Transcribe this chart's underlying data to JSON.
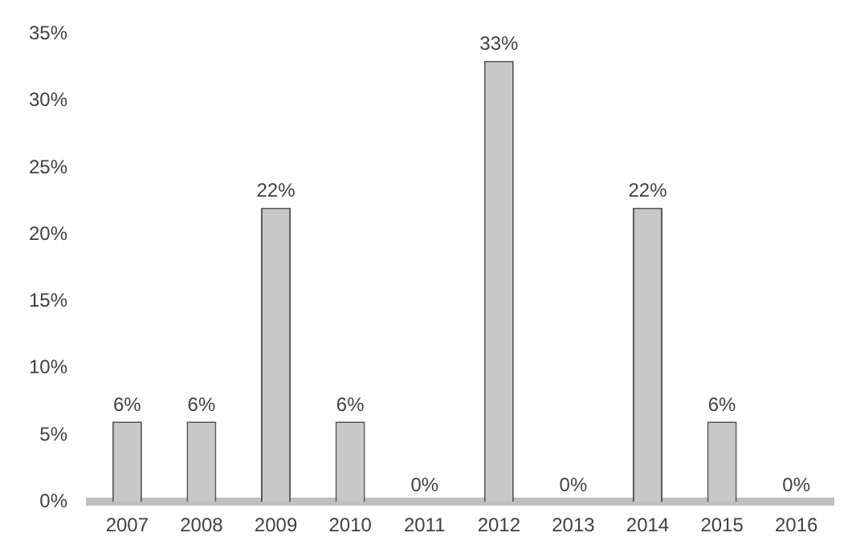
{
  "chart_data": {
    "type": "bar",
    "categories": [
      "2007",
      "2008",
      "2009",
      "2010",
      "2011",
      "2012",
      "2013",
      "2014",
      "2015",
      "2016"
    ],
    "values": [
      6,
      6,
      22,
      6,
      0,
      33,
      0,
      22,
      6,
      0
    ],
    "value_labels": [
      "6%",
      "6%",
      "22%",
      "6%",
      "0%",
      "33%",
      "0%",
      "22%",
      "6%",
      "0%"
    ],
    "color": "#c8c8c8",
    "ylim": [
      0,
      35
    ],
    "yticks": [
      {
        "value": 0,
        "label": "0%"
      },
      {
        "value": 5,
        "label": "5%"
      },
      {
        "value": 10,
        "label": "10%"
      },
      {
        "value": 15,
        "label": "15%"
      },
      {
        "value": 20,
        "label": "20%"
      },
      {
        "value": 25,
        "label": "25%"
      },
      {
        "value": 30,
        "label": "30%"
      },
      {
        "value": 35,
        "label": "35%"
      }
    ],
    "grid": false,
    "legend": false
  }
}
